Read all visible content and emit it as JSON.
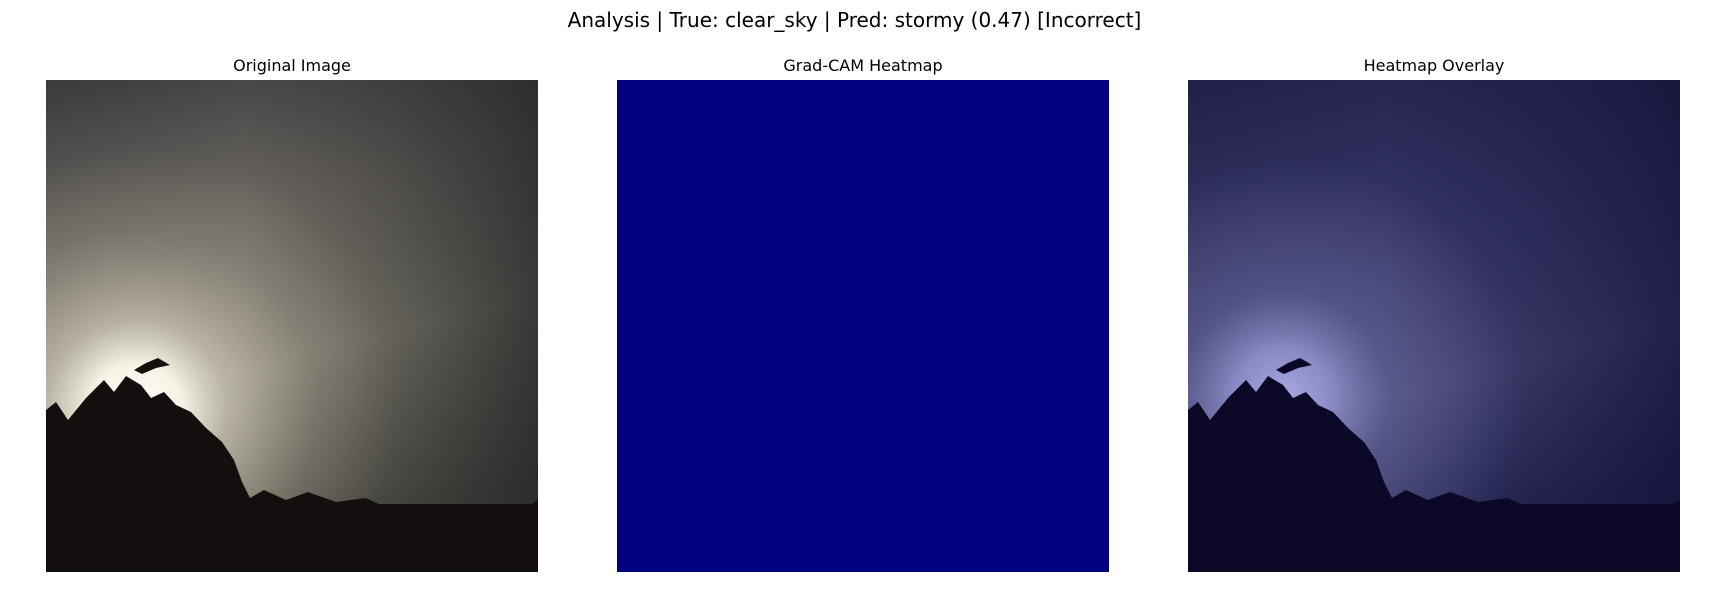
{
  "figure": {
    "title": "Analysis | True: clear_sky | Pred: stormy (0.47) [Incorrect]"
  },
  "panels": [
    {
      "title": "Original Image",
      "image": "sunset-sky-photo"
    },
    {
      "title": "Grad-CAM Heatmap",
      "image": "uniform-blue-heatmap",
      "fill_color": "#01007f"
    },
    {
      "title": "Heatmap Overlay",
      "image": "sunset-photo-with-blue-overlay"
    }
  ]
}
